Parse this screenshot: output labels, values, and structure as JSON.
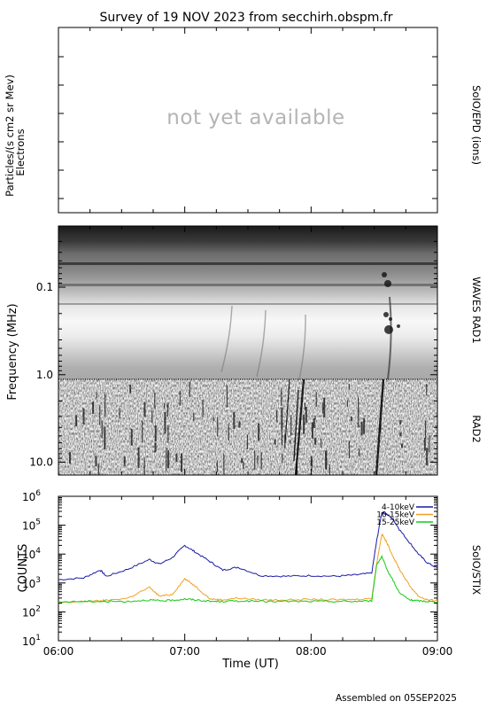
{
  "title": "Survey of 19 NOV 2023 from secchirh.obspm.fr",
  "footer": "Assembled on 05SEP2025",
  "chart_data": [
    {
      "type": "line",
      "panel": "SoIO/EPD (ions)",
      "ylabel": "Particles/(s cm2 sr Mev)",
      "ylabel2": "Electrons",
      "side_label": "SoIO/EPD (ions)",
      "annotation": "not yet available",
      "series": []
    },
    {
      "type": "heatmap",
      "ylabel": "Frequency (MHz)",
      "side_labels": [
        "WAVES RAD1",
        "RAD2"
      ],
      "y_scale": "log",
      "y_reversed": true,
      "yticks": [
        "0.1",
        "1.0",
        "10.0"
      ],
      "x_range": [
        "06:00",
        "09:00"
      ],
      "boundary_mhz": 1.0,
      "ylim": [
        0.02,
        14
      ]
    },
    {
      "type": "line",
      "ylabel": "COUNTS",
      "side_label": "SoIO/STIX",
      "xlabel": "Time (UT)",
      "xticks": [
        "06:00",
        "07:00",
        "08:00",
        "09:00"
      ],
      "y_scale": "log",
      "ylim": [
        10,
        1000000
      ],
      "yticks": [
        "10<sup>1</sup>",
        "10<sup>2</sup>",
        "10<sup>3</sup>",
        "10<sup>4</sup>",
        "10<sup>5</sup>",
        "10<sup>6</sup>"
      ],
      "ytick_base": "10",
      "ytick_exp": [
        "1",
        "2",
        "3",
        "4",
        "5",
        "6"
      ],
      "x_hours": [
        0,
        0.2,
        0.33,
        0.38,
        0.55,
        0.72,
        0.8,
        0.9,
        1.0,
        1.08,
        1.2,
        1.3,
        1.42,
        1.6,
        1.8,
        2.0,
        2.2,
        2.35,
        2.48,
        2.52,
        2.56,
        2.6,
        2.65,
        2.7,
        2.78,
        2.85,
        2.92,
        3.0
      ],
      "series": [
        {
          "name": "4-10keV",
          "color": "#1a1aa8",
          "values": [
            1300,
            1500,
            2800,
            1700,
            3000,
            6500,
            4500,
            7500,
            20000,
            12000,
            5500,
            2800,
            3500,
            1800,
            1700,
            1800,
            1700,
            1900,
            2200,
            30000,
            280000,
            240000,
            160000,
            70000,
            25000,
            10000,
            5000,
            3300
          ]
        },
        {
          "name": "10-15keV",
          "color": "#f0a020",
          "values": [
            200,
            230,
            240,
            250,
            300,
            700,
            350,
            400,
            1400,
            800,
            280,
            260,
            300,
            260,
            260,
            270,
            260,
            270,
            290,
            5000,
            50000,
            25000,
            8000,
            3000,
            800,
            350,
            260,
            240
          ]
        },
        {
          "name": "15-25keV",
          "color": "#18c818",
          "values": [
            220,
            230,
            230,
            230,
            230,
            260,
            240,
            250,
            280,
            260,
            230,
            230,
            240,
            230,
            230,
            230,
            230,
            230,
            240,
            4500,
            8000,
            3000,
            1200,
            450,
            260,
            240,
            230,
            220
          ]
        }
      ]
    }
  ]
}
